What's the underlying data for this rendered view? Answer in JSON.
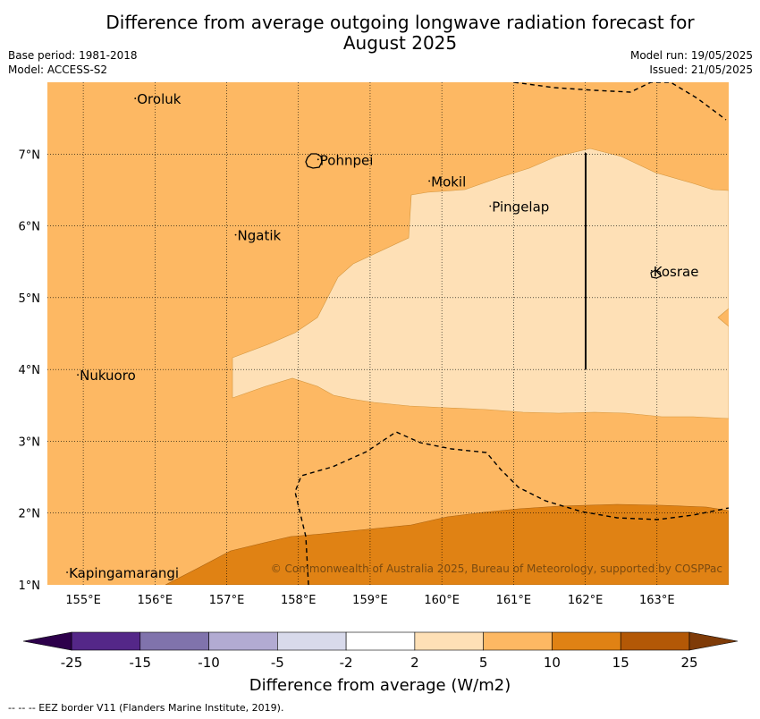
{
  "title_line1": "Difference from average outgoing longwave radiation forecast for",
  "title_line2": "August 2025",
  "base_period": "Base period: 1981-2018",
  "model": "Model: ACCESS-S2",
  "model_run": "Model run: 19/05/2025",
  "issued": "Issued: 21/05/2025",
  "lon_labels": [
    "155°E",
    "156°E",
    "157°E",
    "158°E",
    "159°E",
    "160°E",
    "161°E",
    "162°E",
    "163°E"
  ],
  "lat_labels": [
    "7°N",
    "6°N",
    "5°N",
    "4°N",
    "3°N",
    "2°N",
    "1°N"
  ],
  "places": [
    {
      "name": "Oroluk",
      "lon": 155.75,
      "lat": 7.7
    },
    {
      "name": "Pohnpei",
      "lon": 158.3,
      "lat": 6.85
    },
    {
      "name": "Mokil",
      "lon": 159.85,
      "lat": 6.55
    },
    {
      "name": "Pingelap",
      "lon": 160.7,
      "lat": 6.2
    },
    {
      "name": "Ngatik",
      "lon": 157.15,
      "lat": 5.8
    },
    {
      "name": "Kosrae",
      "lon": 162.95,
      "lat": 5.3
    },
    {
      "name": "Nukuoro",
      "lon": 154.95,
      "lat": 3.85
    },
    {
      "name": "Kapingamarangi",
      "lon": 154.8,
      "lat": 1.1
    }
  ],
  "copyright": "© Commonwealth of Australia 2025, Bureau of Meteorology, supported by COSPPac",
  "colorbar": {
    "ticks": [
      "-25",
      "-15",
      "-10",
      "-5",
      "-2",
      "2",
      "5",
      "10",
      "15",
      "25"
    ],
    "colors": [
      "#542788",
      "#8073ac",
      "#b2abd2",
      "#d8daeb",
      "#ffffff",
      "#fee0b6",
      "#fdb863",
      "#e08214",
      "#b35806"
    ],
    "under_color": "#2d004b",
    "over_color": "#7f3b08",
    "label": "Difference from average (W/m2)"
  },
  "footer": "--  --  -- EEZ border V11 (Flanders Marine Institute, 2019)."
}
